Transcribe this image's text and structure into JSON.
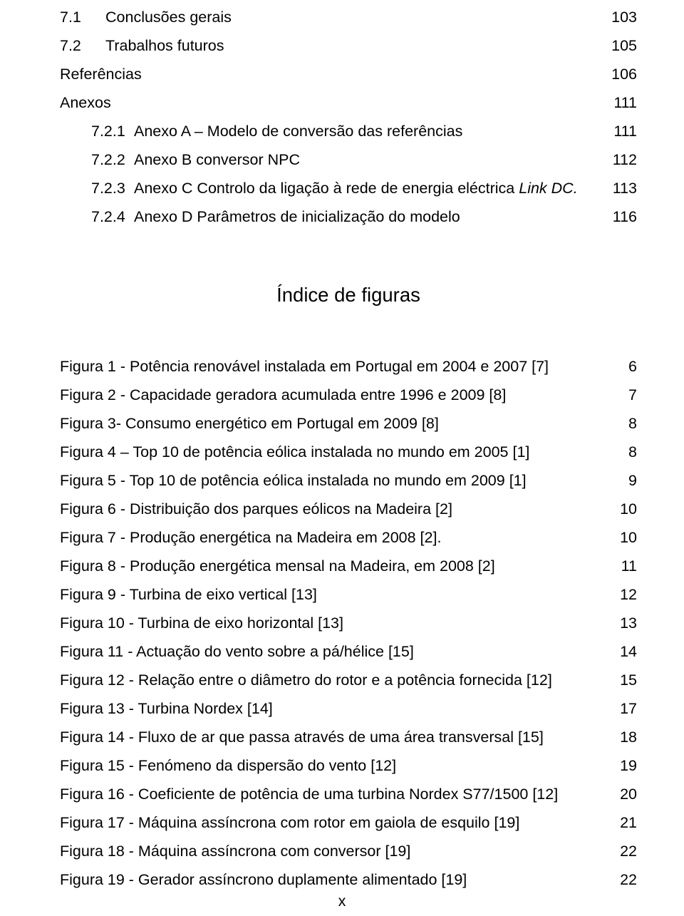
{
  "sections": {
    "s0": {
      "num": "7.1",
      "label": "Conclusões gerais",
      "page": "103"
    },
    "s1": {
      "num": "7.2",
      "label": "Trabalhos futuros",
      "page": "105"
    },
    "s2": {
      "label": "Referências",
      "page": "106"
    },
    "s3": {
      "label": "Anexos",
      "page": "111"
    },
    "s4": {
      "num": "7.2.1",
      "label": "Anexo A – Modelo de conversão das referências",
      "page": "111"
    },
    "s5": {
      "num": "7.2.2",
      "label": "Anexo B conversor NPC",
      "page": "112"
    },
    "s6": {
      "num": "7.2.3",
      "label_a": "Anexo C Controlo da ligação à rede de energia eléctrica ",
      "label_i": "Link DC.",
      "page": "113"
    },
    "s7": {
      "num": "7.2.4",
      "label": "Anexo D Parâmetros de inicialização do modelo",
      "page": "116"
    }
  },
  "heading": "Índice de figuras",
  "figures": {
    "f0": {
      "label": "Figura 1 - Potência renovável instalada em Portugal em 2004 e 2007 [7]",
      "page": "6"
    },
    "f1": {
      "label": "Figura 2 - Capacidade geradora acumulada entre 1996 e 2009 [8]",
      "page": "7"
    },
    "f2": {
      "label": "Figura 3- Consumo energético em Portugal em 2009 [8]",
      "page": "8"
    },
    "f3": {
      "label": "Figura 4 – Top 10 de potência eólica instalada no mundo em 2005 [1]",
      "page": "8"
    },
    "f4": {
      "label": "Figura 5 - Top 10 de potência eólica instalada no mundo em 2009 [1]",
      "page": "9"
    },
    "f5": {
      "label": "Figura 6 - Distribuição dos parques eólicos na Madeira [2]",
      "page": "10"
    },
    "f6": {
      "label": "Figura 7 - Produção energética na Madeira em 2008 [2].",
      "page": "10"
    },
    "f7": {
      "label": "Figura 8 - Produção energética mensal na Madeira, em 2008 [2]",
      "page": "11"
    },
    "f8": {
      "label": "Figura 9 - Turbina de eixo vertical [13]",
      "page": "12"
    },
    "f9": {
      "label": "Figura 10 - Turbina de eixo horizontal [13]",
      "page": "13"
    },
    "f10": {
      "label": "Figura 11 - Actuação do vento sobre a pá/hélice [15]",
      "page": "14"
    },
    "f11": {
      "label": "Figura 12 - Relação entre o diâmetro do rotor e a potência fornecida [12]",
      "page": "15"
    },
    "f12": {
      "label": "Figura 13 - Turbina Nordex [14]",
      "page": "17"
    },
    "f13": {
      "label": "Figura 14 - Fluxo de ar que passa através de uma área transversal [15]",
      "page": "18"
    },
    "f14": {
      "label": "Figura 15 - Fenómeno da dispersão do vento [12]",
      "page": "19"
    },
    "f15": {
      "label": "Figura 16 - Coeficiente de potência de uma turbina Nordex S77/1500 [12]",
      "page": "20"
    },
    "f16": {
      "label": "Figura 17 - Máquina assíncrona com rotor em gaiola de esquilo [19]",
      "page": "21"
    },
    "f17": {
      "label": "Figura 18 - Máquina assíncrona com conversor [19]",
      "page": "22"
    },
    "f18": {
      "label": "Figura 19 - Gerador assíncrono duplamente alimentado [19]",
      "page": "22"
    }
  },
  "footer": "x"
}
